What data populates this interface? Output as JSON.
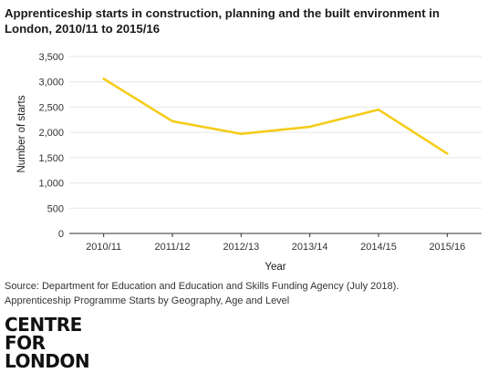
{
  "chart_data": {
    "type": "line",
    "title": "Apprenticeship starts in construction, planning and the built environment in London, 2010/11 to 2015/16",
    "title_lines": [
      "Apprenticeship starts in construction, planning and the built environment in",
      "London, 2010/11 to 2015/16"
    ],
    "xlabel": "Year",
    "ylabel": "Number of starts",
    "categories": [
      "2010/11",
      "2011/12",
      "2012/13",
      "2013/14",
      "2014/15",
      "2015/16"
    ],
    "values": [
      3060,
      2220,
      1970,
      2110,
      2450,
      1580
    ],
    "ylim": [
      0,
      3500
    ],
    "yticks": [
      "0",
      "500",
      "1,000",
      "1,500",
      "2,000",
      "2,500",
      "3,000",
      "3,500"
    ],
    "ytick_values": [
      0,
      500,
      1000,
      1500,
      2000,
      2500,
      3000,
      3500
    ],
    "grid": true,
    "line_color": "#F5CC1A",
    "grid_color": "#E6E6E6"
  },
  "source": {
    "line1": "Source: Department for Education and Education and Skills Funding Agency (July 2018).",
    "line2": "Apprenticeship Programme Starts by Geography, Age and Level"
  },
  "logo": {
    "line1": "CENTRE",
    "line2": "FOR",
    "line3": "LONDON"
  }
}
